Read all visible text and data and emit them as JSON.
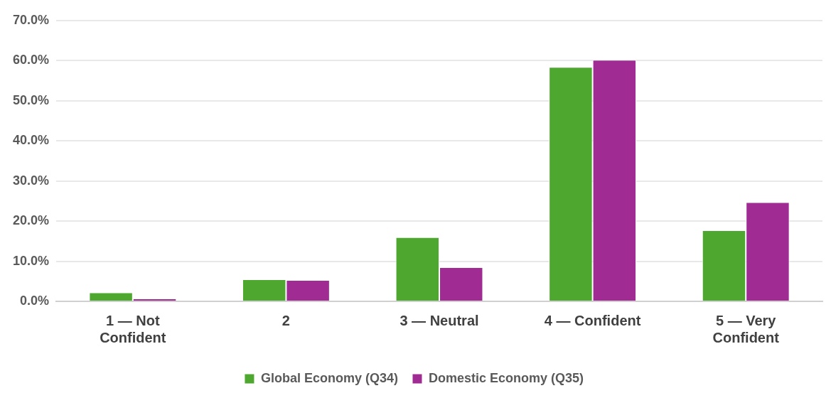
{
  "chart_data": {
    "type": "bar",
    "categories": [
      "1 — Not Confident",
      "2",
      "3 — Neutral",
      "4 — Confident",
      "5 — Very Confident"
    ],
    "series": [
      {
        "name": "Global Economy (Q34)",
        "color": "#4ea72e",
        "values": [
          2.2,
          5.5,
          16.0,
          58.4,
          17.7
        ]
      },
      {
        "name": "Domestic Economy (Q35)",
        "color": "#a02b93",
        "values": [
          0.7,
          5.3,
          8.5,
          60.2,
          24.7
        ]
      }
    ],
    "ylim": [
      0,
      70
    ],
    "yticks": [
      {
        "value": 0,
        "label": "0.0%"
      },
      {
        "value": 10,
        "label": "10.0%"
      },
      {
        "value": 20,
        "label": "20.0%"
      },
      {
        "value": 30,
        "label": "30.0%"
      },
      {
        "value": 40,
        "label": "40.0%"
      },
      {
        "value": 50,
        "label": "50.0%"
      },
      {
        "value": 60,
        "label": "60.0%"
      },
      {
        "value": 70,
        "label": "70.0%"
      }
    ],
    "grid": "y",
    "legend": "bottom"
  }
}
